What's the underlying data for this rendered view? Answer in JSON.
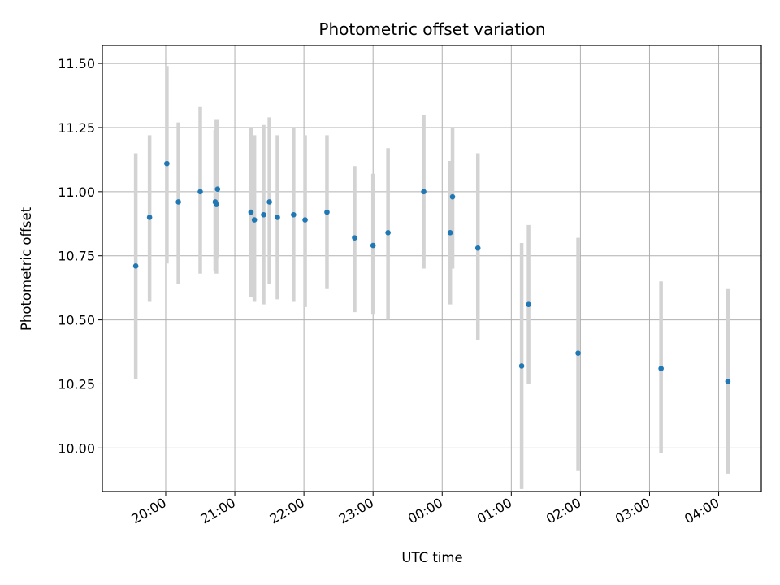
{
  "chart_data": {
    "type": "scatter",
    "title": "Photometric offset variation",
    "xlabel": "UTC time",
    "ylabel": "Photometric offset",
    "x_axis": "time",
    "xlim": [
      "19:05",
      "04:37"
    ],
    "ylim": [
      9.83,
      11.57
    ],
    "grid": true,
    "legend": "none",
    "x_ticks": [
      "20:00",
      "21:00",
      "22:00",
      "23:00",
      "00:00",
      "01:00",
      "02:00",
      "03:00",
      "04:00"
    ],
    "y_ticks": [
      "10.00",
      "10.25",
      "10.50",
      "10.75",
      "11.00",
      "11.25",
      "11.50"
    ],
    "colors": {
      "points": "#1f77b4",
      "errorbars": "#d3d3d3",
      "grid": "#b0b0b0",
      "axes": "#000000"
    },
    "series": [
      {
        "points": [
          {
            "x": "19:34",
            "y": 10.71,
            "ylow": 10.27,
            "yhigh": 11.15
          },
          {
            "x": "19:46",
            "y": 10.9,
            "ylow": 10.57,
            "yhigh": 11.22
          },
          {
            "x": "20:01",
            "y": 11.11,
            "ylow": 10.72,
            "yhigh": 11.49
          },
          {
            "x": "20:11",
            "y": 10.96,
            "ylow": 10.64,
            "yhigh": 11.27
          },
          {
            "x": "20:30",
            "y": 11.0,
            "ylow": 10.68,
            "yhigh": 11.33
          },
          {
            "x": "20:43",
            "y": 10.96,
            "ylow": 10.69,
            "yhigh": 11.24
          },
          {
            "x": "20:44",
            "y": 10.95,
            "ylow": 10.68,
            "yhigh": 11.28
          },
          {
            "x": "20:45",
            "y": 11.01,
            "ylow": 10.74,
            "yhigh": 11.28
          },
          {
            "x": "21:14",
            "y": 10.92,
            "ylow": 10.59,
            "yhigh": 11.25
          },
          {
            "x": "21:17",
            "y": 10.89,
            "ylow": 10.57,
            "yhigh": 11.22
          },
          {
            "x": "21:25",
            "y": 10.91,
            "ylow": 10.56,
            "yhigh": 11.26
          },
          {
            "x": "21:30",
            "y": 10.96,
            "ylow": 10.64,
            "yhigh": 11.29
          },
          {
            "x": "21:37",
            "y": 10.9,
            "ylow": 10.58,
            "yhigh": 11.22
          },
          {
            "x": "21:51",
            "y": 10.91,
            "ylow": 10.57,
            "yhigh": 11.25
          },
          {
            "x": "22:01",
            "y": 10.89,
            "ylow": 10.55,
            "yhigh": 11.22
          },
          {
            "x": "22:20",
            "y": 10.92,
            "ylow": 10.62,
            "yhigh": 11.22
          },
          {
            "x": "22:44",
            "y": 10.82,
            "ylow": 10.53,
            "yhigh": 11.1
          },
          {
            "x": "23:00",
            "y": 10.79,
            "ylow": 10.52,
            "yhigh": 11.07
          },
          {
            "x": "23:13",
            "y": 10.84,
            "ylow": 10.5,
            "yhigh": 11.17
          },
          {
            "x": "23:44",
            "y": 11.0,
            "ylow": 10.7,
            "yhigh": 11.3
          },
          {
            "x": "00:07",
            "y": 10.84,
            "ylow": 10.56,
            "yhigh": 11.12
          },
          {
            "x": "00:09",
            "y": 10.98,
            "ylow": 10.7,
            "yhigh": 11.25
          },
          {
            "x": "00:31",
            "y": 10.78,
            "ylow": 10.42,
            "yhigh": 11.15
          },
          {
            "x": "01:09",
            "y": 10.32,
            "ylow": 9.84,
            "yhigh": 10.8
          },
          {
            "x": "01:15",
            "y": 10.56,
            "ylow": 10.25,
            "yhigh": 10.87
          },
          {
            "x": "01:58",
            "y": 10.37,
            "ylow": 9.91,
            "yhigh": 10.82
          },
          {
            "x": "03:10",
            "y": 10.31,
            "ylow": 9.98,
            "yhigh": 10.65
          },
          {
            "x": "04:08",
            "y": 10.26,
            "ylow": 9.9,
            "yhigh": 10.62
          }
        ]
      }
    ]
  }
}
